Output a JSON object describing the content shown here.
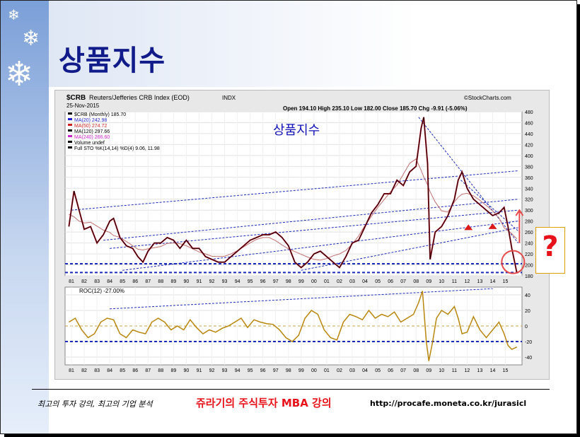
{
  "slide": {
    "title": "상품지수",
    "footer_left": "최고의 투자 강의, 최고의 기업 분석",
    "footer_center": "쥬라기의 주식투자 MBA 강의",
    "footer_url": "http://procafe.moneta.co.kr/jurasicl",
    "question_mark": "?"
  },
  "chart_data": {
    "type": "line",
    "symbol": "$CRB",
    "name": "Reuters/Jefferies CRB Index (EOD)",
    "exchange": "INDX",
    "date": "25-Nov-2015",
    "ohlc": "Open 194.10  High 235.10  Low 182.00  Close 185.70  Chg -9.91 (-5.06%)",
    "source": "©StockCharts.com",
    "annotation": "상품지수",
    "legend": [
      {
        "label": "$CRB (Monthly) 185.70",
        "color": "#000000"
      },
      {
        "label": "MA(20) 242.98",
        "color": "#1f1fcc"
      },
      {
        "label": "MA(50) 274.72",
        "color": "#cc1f1f"
      },
      {
        "label": "MA(120) 297.66",
        "color": "#000000"
      },
      {
        "label": "MA(240) 266.60",
        "color": "#cc22cc"
      },
      {
        "label": "Volume undef",
        "color": "#000000"
      },
      {
        "label": "Full STO %K(14,14) %D(4) 9.06, 11.98",
        "color": "#000000"
      }
    ],
    "x_ticks": [
      "81",
      "82",
      "83",
      "84",
      "85",
      "86",
      "87",
      "88",
      "89",
      "90",
      "91",
      "92",
      "93",
      "94",
      "95",
      "96",
      "97",
      "98",
      "99",
      "00",
      "01",
      "02",
      "03",
      "04",
      "05",
      "06",
      "07",
      "08",
      "09",
      "10",
      "11",
      "12",
      "13",
      "14",
      "15"
    ],
    "y_ticks": [
      180,
      200,
      220,
      240,
      260,
      280,
      300,
      320,
      340,
      360,
      380,
      400,
      420,
      440,
      460,
      480
    ],
    "ylim": [
      180,
      480
    ],
    "series": [
      {
        "name": "$CRB",
        "x": [
          1980.8,
          1981.2,
          1981.6,
          1982.0,
          1982.5,
          1983.0,
          1983.5,
          1984.0,
          1984.3,
          1984.8,
          1985.3,
          1985.8,
          1986.2,
          1986.6,
          1987.0,
          1987.5,
          1988.0,
          1988.5,
          1989.0,
          1989.5,
          1990.0,
          1990.5,
          1991.0,
          1991.5,
          1992.0,
          1992.5,
          1993.0,
          1993.5,
          1994.0,
          1994.5,
          1995.0,
          1995.5,
          1996.0,
          1996.5,
          1997.0,
          1997.5,
          1998.0,
          1998.5,
          1999.0,
          1999.5,
          2000.0,
          2000.5,
          2001.0,
          2001.5,
          2002.0,
          2002.5,
          2003.0,
          2003.5,
          2004.0,
          2004.5,
          2005.0,
          2005.5,
          2006.0,
          2006.5,
          2007.0,
          2007.5,
          2008.0,
          2008.4,
          2008.6,
          2008.9,
          2009.1,
          2009.5,
          2010.0,
          2010.5,
          2011.0,
          2011.3,
          2011.6,
          2012.0,
          2012.5,
          2013.0,
          2013.5,
          2014.0,
          2014.5,
          2014.9,
          2015.2,
          2015.5,
          2015.9
        ],
        "values": [
          270,
          335,
          300,
          265,
          270,
          240,
          255,
          280,
          285,
          250,
          235,
          230,
          215,
          205,
          225,
          240,
          240,
          250,
          245,
          230,
          245,
          230,
          230,
          215,
          210,
          205,
          205,
          215,
          225,
          235,
          245,
          250,
          255,
          255,
          260,
          250,
          235,
          205,
          195,
          205,
          220,
          225,
          215,
          205,
          195,
          215,
          240,
          245,
          270,
          295,
          310,
          330,
          330,
          355,
          345,
          370,
          380,
          450,
          470,
          385,
          210,
          260,
          270,
          290,
          320,
          355,
          370,
          340,
          320,
          310,
          300,
          290,
          295,
          305,
          270,
          230,
          185
        ]
      }
    ],
    "roc": {
      "label": "ROC(12) -27.00%",
      "y_ticks": [
        -40,
        -20,
        0,
        20,
        40
      ],
      "ylim": [
        -50,
        50
      ],
      "x": [
        1980.8,
        1981.3,
        1981.8,
        1982.3,
        1982.8,
        1983.3,
        1983.8,
        1984.3,
        1984.8,
        1985.3,
        1985.8,
        1986.3,
        1986.8,
        1987.3,
        1987.8,
        1988.3,
        1988.8,
        1989.3,
        1989.8,
        1990.3,
        1990.8,
        1991.3,
        1991.8,
        1992.3,
        1992.8,
        1993.3,
        1993.8,
        1994.3,
        1994.8,
        1995.3,
        1995.8,
        1996.3,
        1996.8,
        1997.3,
        1997.8,
        1998.3,
        1998.8,
        1999.3,
        1999.8,
        2000.3,
        2000.8,
        2001.3,
        2001.8,
        2002.3,
        2002.8,
        2003.3,
        2003.8,
        2004.3,
        2004.8,
        2005.3,
        2005.8,
        2006.3,
        2006.8,
        2007.3,
        2007.8,
        2008.2,
        2008.5,
        2008.8,
        2009.0,
        2009.3,
        2009.6,
        2010.0,
        2010.5,
        2011.0,
        2011.3,
        2011.6,
        2012.0,
        2012.5,
        2013.0,
        2013.5,
        2014.0,
        2014.5,
        2014.9,
        2015.2,
        2015.5,
        2015.9
      ],
      "values": [
        5,
        10,
        -5,
        -15,
        -10,
        5,
        10,
        8,
        -10,
        -15,
        -5,
        -8,
        -10,
        5,
        10,
        5,
        -5,
        0,
        -5,
        8,
        -2,
        -10,
        -5,
        -8,
        -3,
        0,
        5,
        10,
        -2,
        8,
        5,
        3,
        2,
        -5,
        -15,
        -20,
        -12,
        10,
        20,
        15,
        -5,
        -15,
        -18,
        5,
        15,
        12,
        8,
        20,
        10,
        15,
        12,
        18,
        5,
        10,
        15,
        30,
        45,
        -20,
        -45,
        -20,
        10,
        20,
        15,
        25,
        10,
        -10,
        -8,
        12,
        -5,
        -15,
        -5,
        5,
        -10,
        -25,
        -30,
        -27
      ]
    },
    "reference_lines_price": [
      202,
      186
    ]
  }
}
